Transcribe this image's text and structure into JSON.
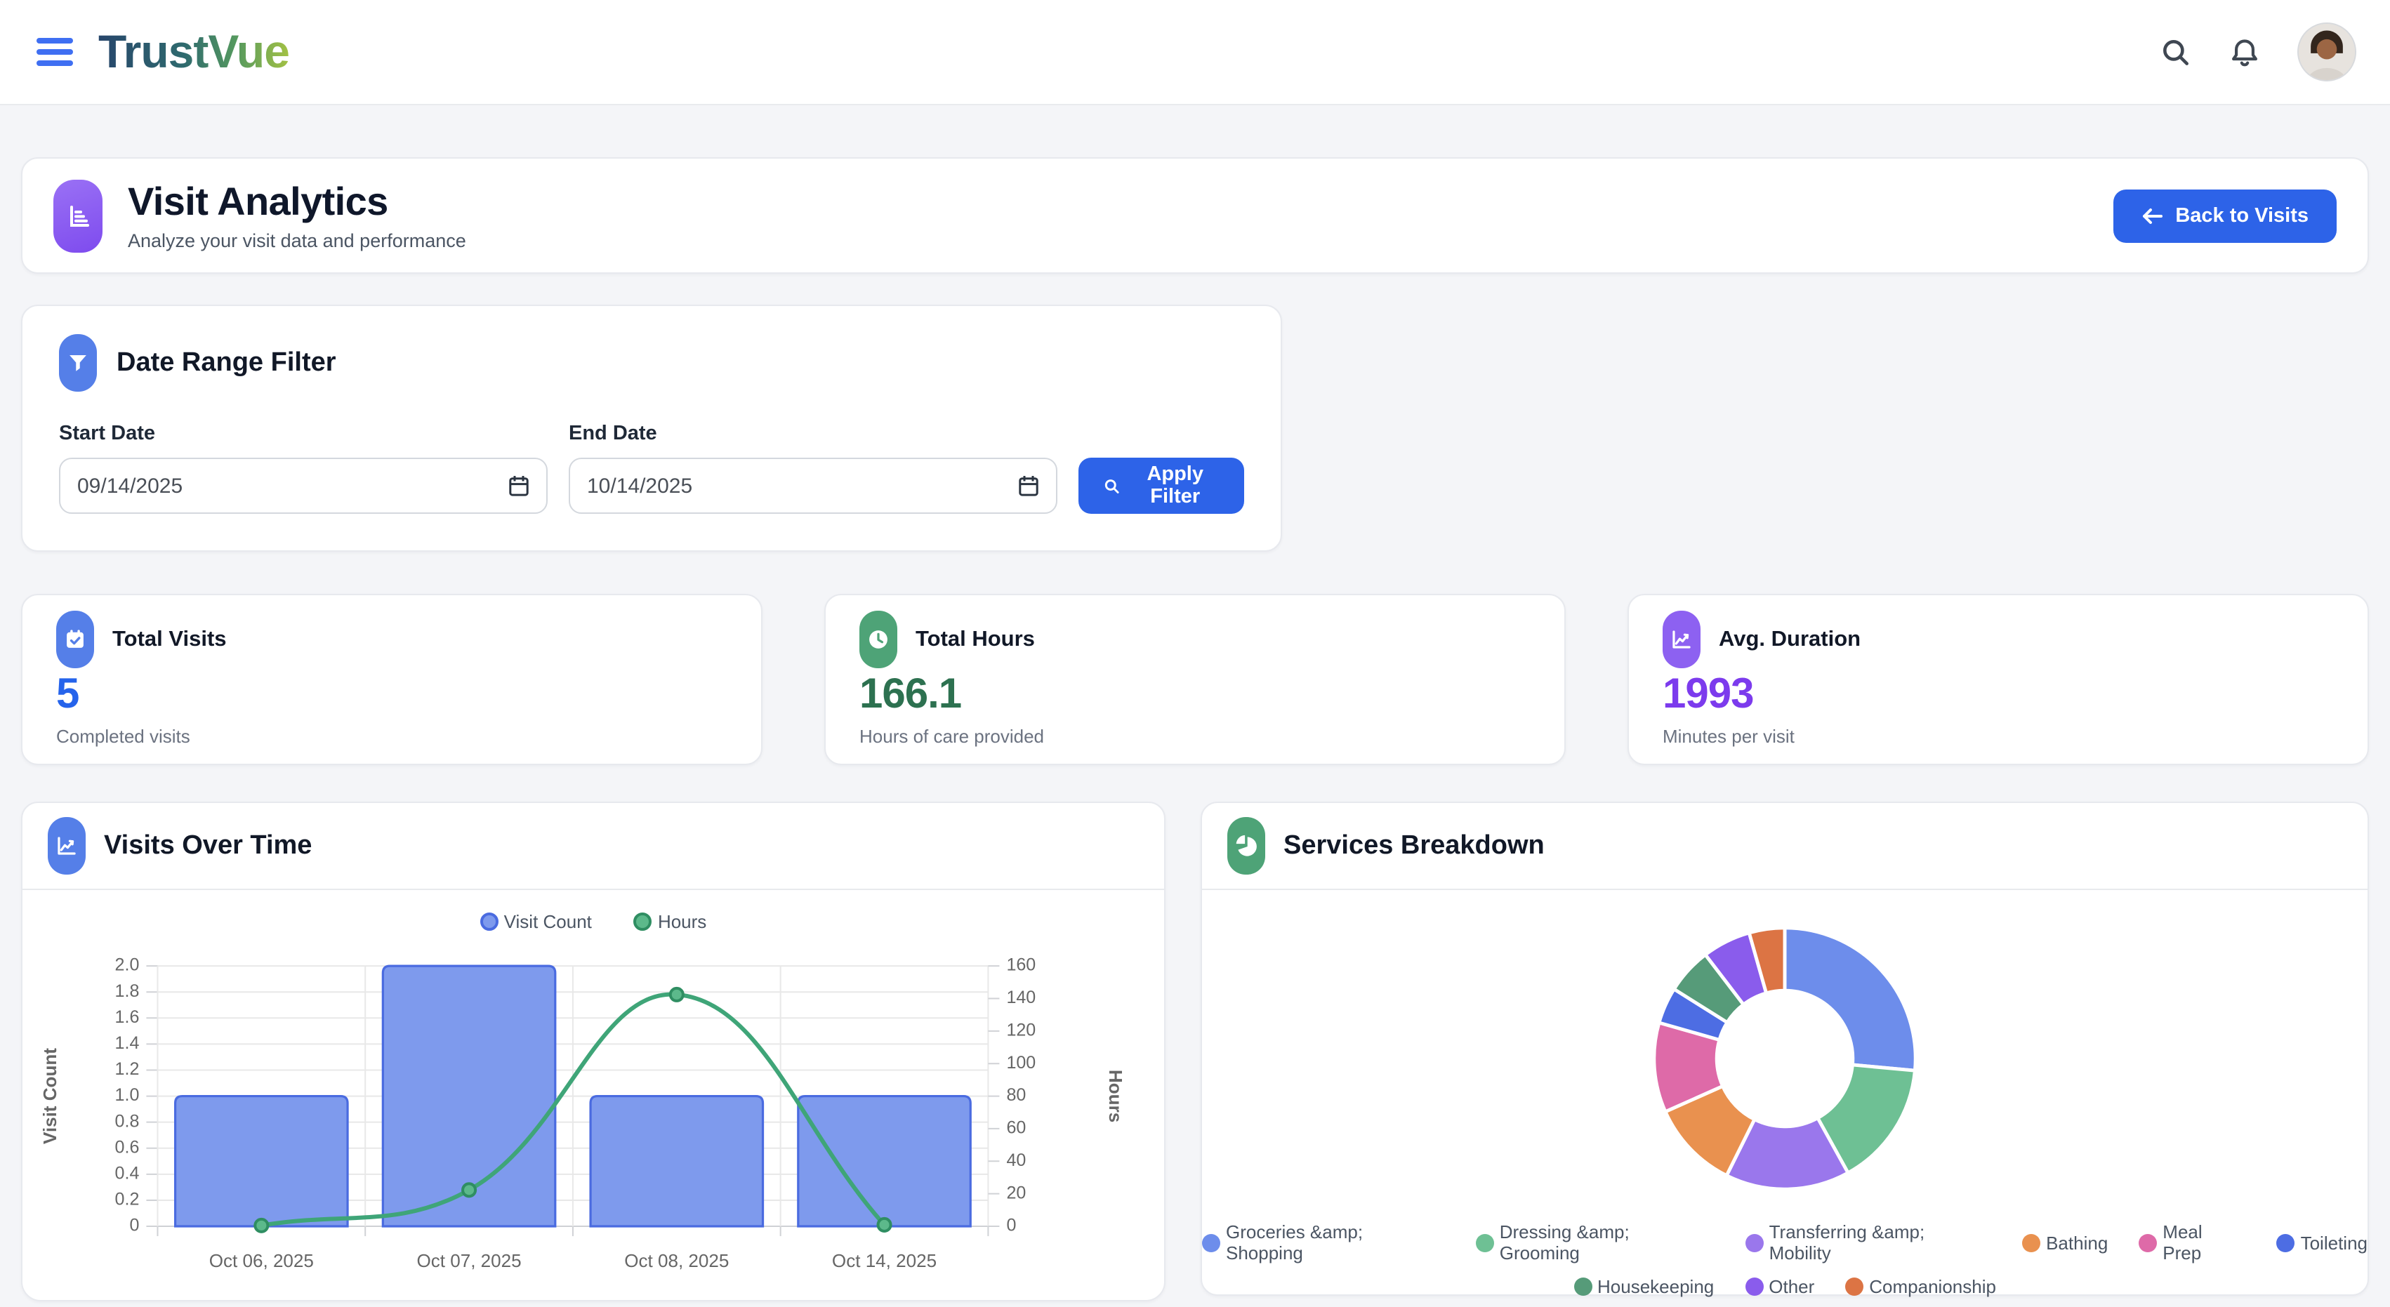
{
  "header": {
    "brand": "TrustVue",
    "icons": [
      "menu-icon",
      "search-icon",
      "bell-icon",
      "user-avatar"
    ]
  },
  "page": {
    "title": "Visit Analytics",
    "subtitle": "Analyze your visit data and performance",
    "back_button": "Back to Visits",
    "title_icon": "bar-chart-icon"
  },
  "filter": {
    "title": "Date Range Filter",
    "icon": "funnel-icon",
    "start": {
      "label": "Start Date",
      "value": "09/14/2025"
    },
    "end": {
      "label": "End Date",
      "value": "10/14/2025"
    },
    "apply_label": "Apply Filter",
    "apply_icon": "search-icon"
  },
  "stats": [
    {
      "label": "Total Visits",
      "value": "5",
      "caption": "Completed visits",
      "icon": "calendar-check-icon",
      "icon_bg": "#557fe8",
      "value_color": "#2563eb"
    },
    {
      "label": "Total Hours",
      "value": "166.1",
      "caption": "Hours of care provided",
      "icon": "clock-icon",
      "icon_bg": "#4ea377",
      "value_color": "#2d7150"
    },
    {
      "label": "Avg. Duration",
      "value": "1993",
      "caption": "Minutes per visit",
      "icon": "trend-line-icon",
      "icon_bg": "#8d61f1",
      "value_color": "#7c3bed"
    }
  ],
  "sections": {
    "visits_chart_title": "Visits Over Time",
    "visits_chart_icon": "trend-line-icon",
    "services_chart_title": "Services Breakdown",
    "services_chart_icon": "pie-chart-icon"
  },
  "theme": {
    "accent_blue": "#2d63e8",
    "background": "#f4f5f8",
    "card_border": "#e7e9ee",
    "grid_line": "#e8e8e8",
    "zero_line": "#cfd1d5",
    "tick_text": "#666666"
  },
  "chart_data": [
    {
      "type": "bar",
      "subtype": "bar-line-combo",
      "title": "Visits Over Time",
      "categories": [
        "Oct 06, 2025",
        "Oct 07, 2025",
        "Oct 08, 2025",
        "Oct 14, 2025"
      ],
      "series": [
        {
          "name": "Visit Count",
          "type": "bar",
          "axis": "left",
          "values": [
            1,
            2,
            1,
            1
          ],
          "fill": "#7e9aed",
          "border": "#4a6be0"
        },
        {
          "name": "Hours",
          "type": "line",
          "axis": "right",
          "values": [
            0.5,
            22.3,
            142.4,
            0.9
          ],
          "color": "#3fa578",
          "point_fill": "#5cb98b",
          "point_border": "#2f8e62"
        }
      ],
      "y_left": {
        "label": "Visit Count",
        "min": 0,
        "max": 2,
        "step": 0.2
      },
      "y_right": {
        "label": "Hours",
        "min": 0,
        "max": 160,
        "step": 20
      },
      "legend_position": "top",
      "grid": true
    },
    {
      "type": "pie",
      "subtype": "doughnut",
      "title": "Services Breakdown",
      "labels": [
        "Groceries &amp; Shopping",
        "Dressing &amp; Grooming",
        "Transferring &amp; Mobility",
        "Bathing",
        "Meal Prep",
        "Toileting",
        "Housekeeping",
        "Other",
        "Companionship"
      ],
      "values": [
        26.5,
        15.5,
        15.4,
        11.0,
        11.1,
        4.5,
        5.7,
        6.0,
        4.4
      ],
      "unit": "percent-estimated",
      "colors": [
        "#6d8deb",
        "#6ec094",
        "#9a77ec",
        "#e9914f",
        "#de6aa8",
        "#4d6de3",
        "#569b79",
        "#8a5cec",
        "#dc7444"
      ],
      "inner_radius_ratio": 0.52,
      "legend_position": "bottom",
      "legend_rows": [
        6,
        3
      ]
    }
  ]
}
